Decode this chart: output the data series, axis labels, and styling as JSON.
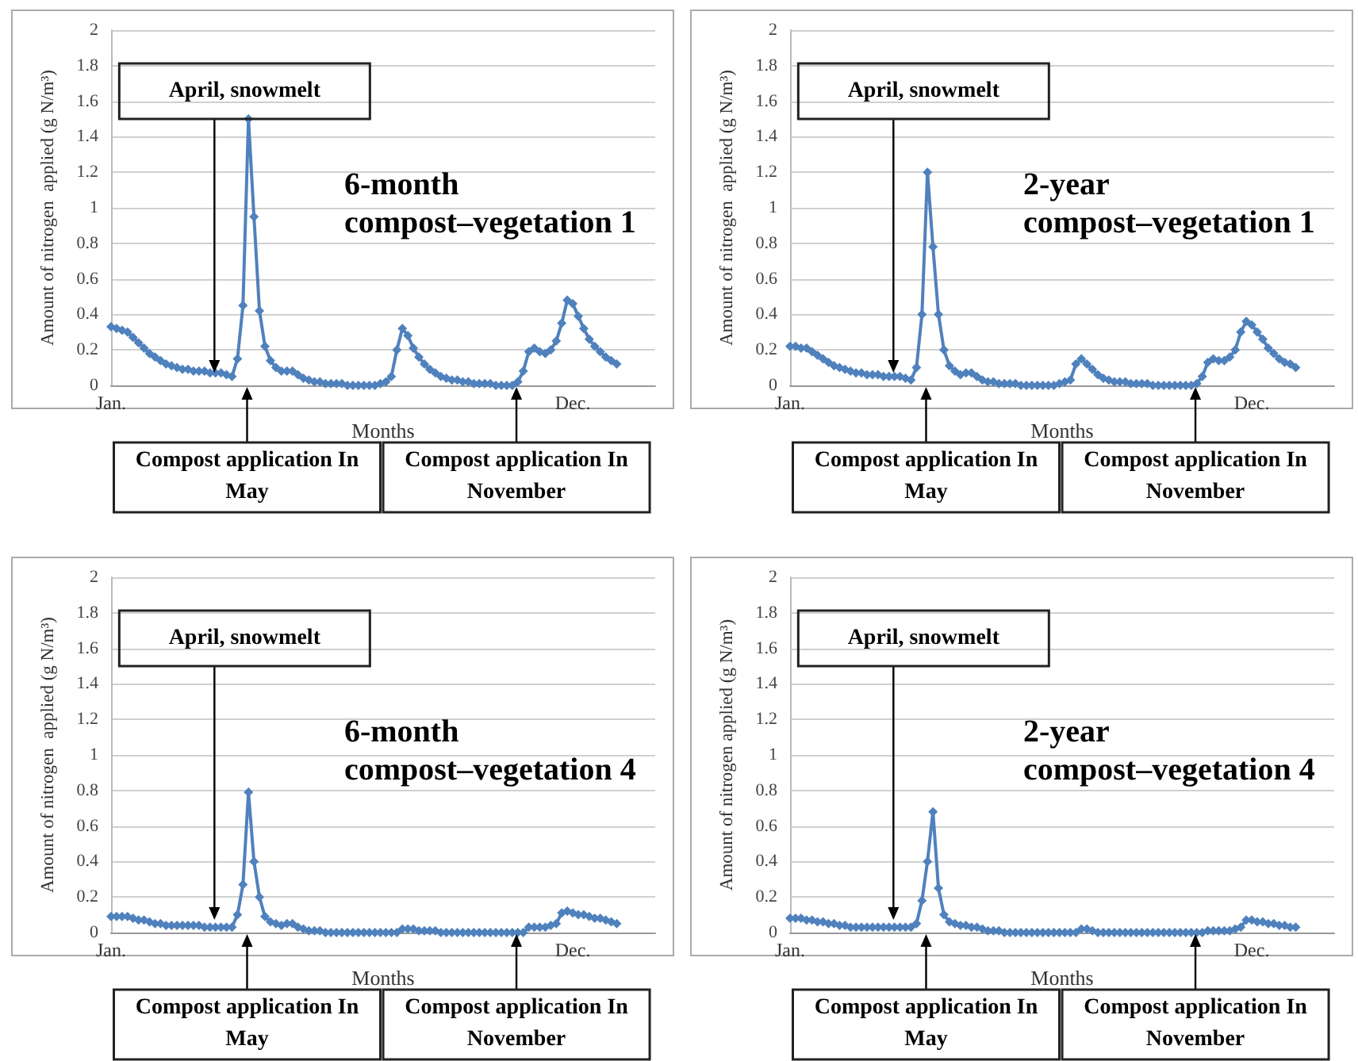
{
  "chart_data": [
    {
      "type": "line",
      "title": "6-month compost–vegetation 1",
      "xlabel": "Months",
      "ylabel": "Amount of nitrogen  applied (g N/m³)",
      "color": "#4f81bd",
      "marker": "diamond",
      "grid": "y",
      "categories": [
        "Jan.",
        null,
        null,
        null,
        null,
        null,
        null,
        null,
        null,
        null,
        null,
        null,
        null,
        null,
        null,
        null,
        null,
        null,
        null,
        null,
        null,
        null,
        null,
        null,
        null,
        null,
        null,
        null,
        null,
        null,
        null,
        null,
        null,
        null,
        null,
        null,
        null,
        null,
        null,
        null,
        null,
        null,
        null,
        null,
        null,
        null,
        null,
        null,
        null,
        null,
        null,
        null,
        null,
        null,
        null,
        null,
        null,
        null,
        null,
        null,
        null,
        null,
        null,
        null,
        null,
        null,
        null,
        null,
        null,
        null,
        null,
        null,
        null,
        null,
        null,
        null,
        null,
        null,
        null,
        null,
        null,
        null,
        null,
        null,
        "Dec.",
        null,
        null,
        null,
        null,
        null,
        null,
        null,
        null,
        null,
        null,
        null,
        null,
        null,
        null,
        null
      ],
      "ylim": [
        0,
        2
      ],
      "yticks": [
        0,
        0.2,
        0.4,
        0.6,
        0.8,
        1,
        1.2,
        1.4,
        1.6,
        1.8,
        2
      ],
      "values": [
        0.33,
        0.32,
        0.31,
        0.3,
        0.27,
        0.24,
        0.21,
        0.18,
        0.16,
        0.14,
        0.12,
        0.11,
        0.1,
        0.09,
        0.09,
        0.08,
        0.08,
        0.08,
        0.07,
        0.07,
        0.07,
        0.06,
        0.05,
        0.15,
        0.45,
        1.5,
        0.95,
        0.42,
        0.22,
        0.14,
        0.1,
        0.08,
        0.08,
        0.08,
        0.06,
        0.04,
        0.03,
        0.02,
        0.02,
        0.01,
        0.01,
        0.01,
        0.01,
        0,
        0,
        0,
        0,
        0,
        0,
        0.01,
        0.02,
        0.05,
        0.2,
        0.32,
        0.28,
        0.21,
        0.16,
        0.12,
        0.09,
        0.07,
        0.05,
        0.04,
        0.03,
        0.03,
        0.02,
        0.02,
        0.01,
        0.01,
        0.01,
        0.01,
        0,
        0,
        0,
        0,
        0.02,
        0.08,
        0.19,
        0.21,
        0.19,
        0.18,
        0.2,
        0.25,
        0.35,
        0.48,
        0.46,
        0.39,
        0.32,
        0.26,
        0.22,
        0.19,
        0.16,
        0.14,
        0.12,
        null,
        null,
        null,
        null,
        null,
        null,
        null
      ],
      "annotations": [
        "April,  snowmelt",
        "Compost application In May",
        "Compost application In November"
      ]
    },
    {
      "type": "line",
      "title": "2-year compost–vegetation 1",
      "xlabel": "Months",
      "ylabel": "Amount of nitrogen  applied (g N/m³)",
      "color": "#4f81bd",
      "marker": "diamond",
      "grid": "y",
      "categories": [
        "Jan.",
        null,
        null,
        null,
        null,
        null,
        null,
        null,
        null,
        null,
        null,
        null,
        null,
        null,
        null,
        null,
        null,
        null,
        null,
        null,
        null,
        null,
        null,
        null,
        null,
        null,
        null,
        null,
        null,
        null,
        null,
        null,
        null,
        null,
        null,
        null,
        null,
        null,
        null,
        null,
        null,
        null,
        null,
        null,
        null,
        null,
        null,
        null,
        null,
        null,
        null,
        null,
        null,
        null,
        null,
        null,
        null,
        null,
        null,
        null,
        null,
        null,
        null,
        null,
        null,
        null,
        null,
        null,
        null,
        null,
        null,
        null,
        null,
        null,
        null,
        null,
        null,
        null,
        null,
        null,
        null,
        null,
        null,
        null,
        "Dec.",
        null,
        null,
        null,
        null,
        null,
        null,
        null,
        null,
        null,
        null,
        null,
        null,
        null,
        null,
        null
      ],
      "ylim": [
        0,
        2
      ],
      "yticks": [
        0,
        0.2,
        0.4,
        0.6,
        0.8,
        1,
        1.2,
        1.4,
        1.6,
        1.8,
        2
      ],
      "values": [
        0.22,
        0.22,
        0.21,
        0.21,
        0.19,
        0.17,
        0.15,
        0.13,
        0.11,
        0.1,
        0.09,
        0.08,
        0.07,
        0.07,
        0.06,
        0.06,
        0.06,
        0.05,
        0.05,
        0.05,
        0.05,
        0.04,
        0.03,
        0.1,
        0.4,
        1.2,
        0.78,
        0.4,
        0.2,
        0.11,
        0.08,
        0.06,
        0.07,
        0.07,
        0.05,
        0.03,
        0.02,
        0.02,
        0.01,
        0.01,
        0.01,
        0.01,
        0,
        0,
        0,
        0,
        0,
        0,
        0,
        0.01,
        0.02,
        0.03,
        0.12,
        0.15,
        0.12,
        0.09,
        0.06,
        0.04,
        0.03,
        0.02,
        0.02,
        0.02,
        0.01,
        0.01,
        0.01,
        0.01,
        0,
        0,
        0,
        0,
        0,
        0,
        0,
        0,
        0.01,
        0.05,
        0.13,
        0.15,
        0.14,
        0.14,
        0.16,
        0.2,
        0.3,
        0.36,
        0.34,
        0.3,
        0.26,
        0.21,
        0.18,
        0.15,
        0.13,
        0.12,
        0.1,
        null,
        null,
        null,
        null,
        null,
        null,
        null
      ],
      "annotations": [
        "April,  snowmelt",
        "Compost application In May",
        "Compost application In November"
      ]
    },
    {
      "type": "line",
      "title": "6-month compost–vegetation 4",
      "xlabel": "Months",
      "ylabel": "Amount of nitrogen  applied (g N/m³)",
      "color": "#4f81bd",
      "marker": "diamond",
      "grid": "y",
      "categories": [
        "Jan.",
        null,
        null,
        null,
        null,
        null,
        null,
        null,
        null,
        null,
        null,
        null,
        null,
        null,
        null,
        null,
        null,
        null,
        null,
        null,
        null,
        null,
        null,
        null,
        null,
        null,
        null,
        null,
        null,
        null,
        null,
        null,
        null,
        null,
        null,
        null,
        null,
        null,
        null,
        null,
        null,
        null,
        null,
        null,
        null,
        null,
        null,
        null,
        null,
        null,
        null,
        null,
        null,
        null,
        null,
        null,
        null,
        null,
        null,
        null,
        null,
        null,
        null,
        null,
        null,
        null,
        null,
        null,
        null,
        null,
        null,
        null,
        null,
        null,
        null,
        null,
        null,
        null,
        null,
        null,
        null,
        null,
        null,
        null,
        "Dec.",
        null,
        null,
        null,
        null,
        null,
        null,
        null,
        null,
        null,
        null,
        null,
        null,
        null,
        null,
        null
      ],
      "ylim": [
        0,
        2
      ],
      "yticks": [
        0,
        0.2,
        0.4,
        0.6,
        0.8,
        1,
        1.2,
        1.4,
        1.6,
        1.8,
        2
      ],
      "values": [
        0.09,
        0.09,
        0.09,
        0.09,
        0.08,
        0.07,
        0.07,
        0.06,
        0.05,
        0.05,
        0.04,
        0.04,
        0.04,
        0.04,
        0.04,
        0.04,
        0.04,
        0.03,
        0.03,
        0.03,
        0.03,
        0.03,
        0.03,
        0.1,
        0.27,
        0.79,
        0.4,
        0.2,
        0.09,
        0.06,
        0.05,
        0.04,
        0.05,
        0.05,
        0.03,
        0.02,
        0.01,
        0.01,
        0.01,
        0,
        0,
        0,
        0,
        0,
        0,
        0,
        0,
        0,
        0,
        0,
        0,
        0,
        0,
        0.02,
        0.02,
        0.02,
        0.01,
        0.01,
        0.01,
        0.01,
        0,
        0,
        0,
        0,
        0,
        0,
        0,
        0,
        0,
        0,
        0,
        0,
        0,
        0,
        0,
        0,
        0.03,
        0.03,
        0.03,
        0.03,
        0.04,
        0.05,
        0.11,
        0.12,
        0.11,
        0.1,
        0.1,
        0.09,
        0.08,
        0.08,
        0.07,
        0.06,
        0.05,
        null,
        null,
        null,
        null,
        null,
        null,
        null
      ],
      "annotations": [
        "April,  snowmelt",
        "Compost application In May",
        "Compost application In November"
      ]
    },
    {
      "type": "line",
      "title": "2-year compost–vegetation 4",
      "xlabel": "Months",
      "ylabel": "Amount of nitrogen applied (g N/m³)",
      "color": "#4f81bd",
      "marker": "diamond",
      "grid": "y",
      "categories": [
        "Jan.",
        null,
        null,
        null,
        null,
        null,
        null,
        null,
        null,
        null,
        null,
        null,
        null,
        null,
        null,
        null,
        null,
        null,
        null,
        null,
        null,
        null,
        null,
        null,
        null,
        null,
        null,
        null,
        null,
        null,
        null,
        null,
        null,
        null,
        null,
        null,
        null,
        null,
        null,
        null,
        null,
        null,
        null,
        null,
        null,
        null,
        null,
        null,
        null,
        null,
        null,
        null,
        null,
        null,
        null,
        null,
        null,
        null,
        null,
        null,
        null,
        null,
        null,
        null,
        null,
        null,
        null,
        null,
        null,
        null,
        null,
        null,
        null,
        null,
        null,
        null,
        null,
        null,
        null,
        null,
        null,
        null,
        null,
        null,
        "Dec.",
        null,
        null,
        null,
        null,
        null,
        null,
        null,
        null,
        null,
        null,
        null,
        null,
        null,
        null,
        null
      ],
      "ylim": [
        0,
        2
      ],
      "yticks": [
        0,
        0.2,
        0.4,
        0.6,
        0.8,
        1,
        1.2,
        1.4,
        1.6,
        1.8,
        2
      ],
      "values": [
        0.08,
        0.08,
        0.08,
        0.07,
        0.07,
        0.06,
        0.06,
        0.05,
        0.05,
        0.04,
        0.04,
        0.03,
        0.03,
        0.03,
        0.03,
        0.03,
        0.03,
        0.03,
        0.03,
        0.03,
        0.03,
        0.03,
        0.03,
        0.05,
        0.18,
        0.4,
        0.68,
        0.25,
        0.1,
        0.06,
        0.05,
        0.04,
        0.04,
        0.03,
        0.03,
        0.02,
        0.01,
        0.01,
        0.01,
        0,
        0,
        0,
        0,
        0,
        0,
        0,
        0,
        0,
        0,
        0,
        0,
        0,
        0,
        0.02,
        0.02,
        0.01,
        0,
        0,
        0,
        0,
        0,
        0,
        0,
        0,
        0,
        0,
        0,
        0,
        0,
        0,
        0,
        0,
        0,
        0,
        0,
        0,
        0.01,
        0.01,
        0.01,
        0.01,
        0.01,
        0.02,
        0.03,
        0.07,
        0.07,
        0.06,
        0.06,
        0.05,
        0.05,
        0.04,
        0.04,
        0.03,
        0.03,
        null,
        null,
        null,
        null,
        null,
        null,
        null
      ],
      "annotations": [
        "April,  snowmelt",
        "Compost application In May",
        "Compost application In November"
      ]
    }
  ]
}
